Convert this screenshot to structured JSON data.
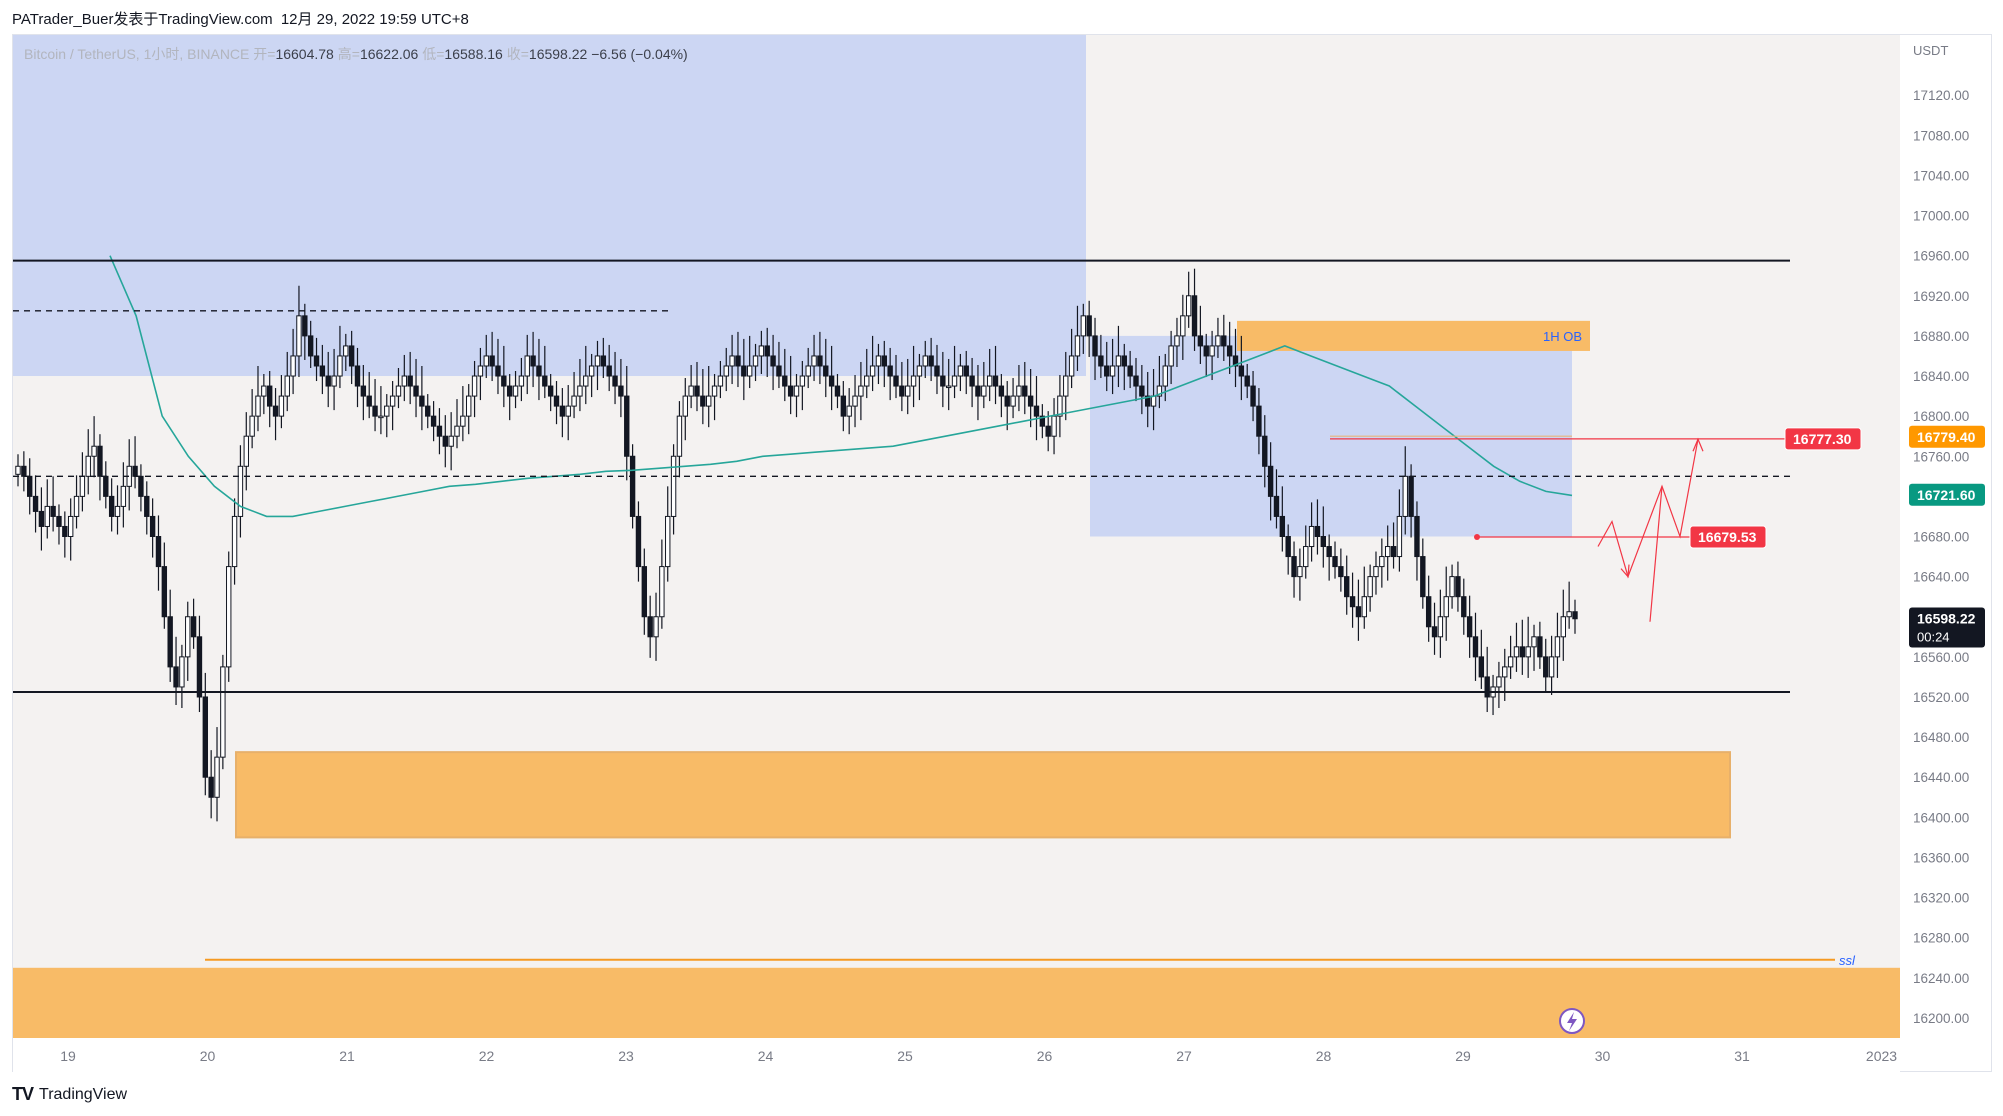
{
  "header": {
    "author": "PATrader_Buer发表于TradingView.com",
    "date": "12月 29, 2022 19:59 UTC+8"
  },
  "legend": {
    "symbol": "Bitcoin / TetherUS, 1小时, BINANCE",
    "open_label": "开=",
    "open": "16604.78",
    "high_label": "高=",
    "high": "16622.06",
    "low_label": "低=",
    "low": "16588.16",
    "close_label": "收=",
    "close": "16598.22",
    "change": "−6.56 (−0.04%)"
  },
  "footer": {
    "brand": "TradingView"
  },
  "colors": {
    "blue_zone": "#ccd6f3",
    "orange_zone": "#f8bb67",
    "ma_line": "#26a69a",
    "red_label": "#f23645",
    "orange_label": "#ff9800",
    "green_label": "#089981"
  },
  "chart_data": {
    "type": "candlestick",
    "currency": "USDT",
    "ylim": [
      16180,
      17180
    ],
    "y_ticks": [
      17120,
      17080,
      17040,
      17000,
      16960,
      16920,
      16880,
      16840,
      16800,
      16760,
      16720,
      16680,
      16640,
      16600,
      16560,
      16520,
      16480,
      16440,
      16400,
      16360,
      16320,
      16280,
      16240,
      16200
    ],
    "x_ticks": [
      {
        "label": "19",
        "day": 19
      },
      {
        "label": "20",
        "day": 20
      },
      {
        "label": "21",
        "day": 21
      },
      {
        "label": "22",
        "day": 22
      },
      {
        "label": "23",
        "day": 23
      },
      {
        "label": "24",
        "day": 24
      },
      {
        "label": "25",
        "day": 25
      },
      {
        "label": "26",
        "day": 26
      },
      {
        "label": "27",
        "day": 27
      },
      {
        "label": "28",
        "day": 28
      },
      {
        "label": "29",
        "day": 29
      },
      {
        "label": "30",
        "day": 30
      },
      {
        "label": "31",
        "day": 31
      },
      {
        "label": "2023",
        "day": 32
      }
    ],
    "candles_close": [
      16750,
      16740,
      16720,
      16705,
      16690,
      16710,
      16700,
      16690,
      16680,
      16700,
      16720,
      16740,
      16760,
      16770,
      16740,
      16720,
      16700,
      16710,
      16730,
      16750,
      16740,
      16720,
      16700,
      16680,
      16650,
      16600,
      16550,
      16530,
      16560,
      16600,
      16580,
      16520,
      16440,
      16420,
      16460,
      16550,
      16650,
      16700,
      16750,
      16780,
      16800,
      16820,
      16830,
      16810,
      16800,
      16820,
      16840,
      16860,
      16900,
      16880,
      16860,
      16850,
      16840,
      16830,
      16840,
      16860,
      16870,
      16850,
      16830,
      16820,
      16810,
      16800,
      16800,
      16810,
      16820,
      16830,
      16840,
      16830,
      16820,
      16810,
      16800,
      16790,
      16780,
      16770,
      16780,
      16790,
      16800,
      16820,
      16840,
      16850,
      16860,
      16850,
      16840,
      16830,
      16820,
      16830,
      16840,
      16860,
      16850,
      16840,
      16830,
      16820,
      16810,
      16800,
      16810,
      16820,
      16830,
      16840,
      16850,
      16860,
      16850,
      16840,
      16830,
      16820,
      16760,
      16700,
      16650,
      16600,
      16580,
      16600,
      16650,
      16700,
      16760,
      16800,
      16820,
      16830,
      16820,
      16810,
      16820,
      16830,
      16840,
      16850,
      16860,
      16850,
      16840,
      16850,
      16860,
      16870,
      16860,
      16850,
      16840,
      16830,
      16820,
      16830,
      16840,
      16850,
      16860,
      16850,
      16840,
      16830,
      16820,
      16800,
      16810,
      16820,
      16830,
      16840,
      16850,
      16860,
      16850,
      16840,
      16830,
      16820,
      16830,
      16840,
      16850,
      16860,
      16850,
      16840,
      16830,
      16830,
      16840,
      16850,
      16840,
      16830,
      16820,
      16830,
      16840,
      16830,
      16820,
      16810,
      16820,
      16830,
      16820,
      16810,
      16800,
      16790,
      16780,
      16800,
      16820,
      16840,
      16860,
      16880,
      16900,
      16880,
      16860,
      16850,
      16840,
      16850,
      16860,
      16850,
      16840,
      16830,
      16820,
      16810,
      16820,
      16830,
      16850,
      16870,
      16880,
      16900,
      16920,
      16880,
      16870,
      16860,
      16870,
      16880,
      16870,
      16860,
      16850,
      16840,
      16830,
      16810,
      16780,
      16750,
      16720,
      16700,
      16680,
      16660,
      16640,
      16650,
      16670,
      16690,
      16680,
      16670,
      16660,
      16650,
      16640,
      16620,
      16610,
      16600,
      16620,
      16640,
      16650,
      16660,
      16670,
      16660,
      16700,
      16740,
      16700,
      16660,
      16620,
      16590,
      16580,
      16600,
      16620,
      16640,
      16620,
      16600,
      16580,
      16560,
      16540,
      16520,
      16530,
      16540,
      16550,
      16560,
      16570,
      16560,
      16570,
      16580,
      16560,
      16540,
      16560,
      16580,
      16600,
      16605,
      16598
    ],
    "ma_values": [
      16960,
      16900,
      16800,
      16760,
      16730,
      16710,
      16700,
      16700,
      16705,
      16710,
      16715,
      16720,
      16725,
      16730,
      16732,
      16735,
      16738,
      16740,
      16742,
      16745,
      16746,
      16748,
      16750,
      16752,
      16755,
      16760,
      16762,
      16764,
      16766,
      16768,
      16770,
      16775,
      16780,
      16785,
      16790,
      16795,
      16800,
      16805,
      16810,
      16815,
      16820,
      16830,
      16840,
      16850,
      16860,
      16870,
      16860,
      16850,
      16840,
      16830,
      16810,
      16790,
      16770,
      16750,
      16735,
      16725,
      16721
    ],
    "levels": [
      {
        "name": "resistance",
        "price": 16955,
        "color": "#131722",
        "style": "solid"
      },
      {
        "name": "support",
        "price": 16525,
        "color": "#131722",
        "style": "solid"
      },
      {
        "name": "upper-dashed",
        "price": 16905,
        "color": "#131722",
        "style": "dashed"
      },
      {
        "name": "mid-dashed",
        "price": 16740,
        "color": "#131722",
        "style": "dashed"
      },
      {
        "name": "ssl",
        "price": 16258,
        "color": "#f59a23",
        "style": "solid",
        "label": "ssl"
      }
    ],
    "zones": [
      {
        "name": "blue-left",
        "from_price": 16840,
        "to_price": 17180,
        "color": "#ccd6f3"
      },
      {
        "name": "blue-right",
        "from_price": 16680,
        "to_price": 16880,
        "color": "#ccd6f3"
      },
      {
        "name": "ob-zone",
        "from_price": 16865,
        "to_price": 16895,
        "color": "#f8bb67",
        "label": "1H OB"
      },
      {
        "name": "demand-zone",
        "from_price": 16380,
        "to_price": 16465,
        "color": "#f8bb67"
      },
      {
        "name": "bottom-zone",
        "from_price": 16180,
        "to_price": 16250,
        "color": "#f8bb67"
      }
    ],
    "price_labels": [
      {
        "name": "target-label",
        "text": "16777.30",
        "color": "#f23645"
      },
      {
        "name": "mid-label",
        "text": "16679.53",
        "color": "#f23645"
      },
      {
        "name": "orange-axis-label",
        "text": "16779.40",
        "color": "#ff9800"
      },
      {
        "name": "ma-axis-label",
        "text": "16721.60",
        "color": "#089981"
      },
      {
        "name": "last-price-label",
        "text": "16598.22",
        "color": "#131722",
        "countdown": "00:24"
      }
    ]
  }
}
